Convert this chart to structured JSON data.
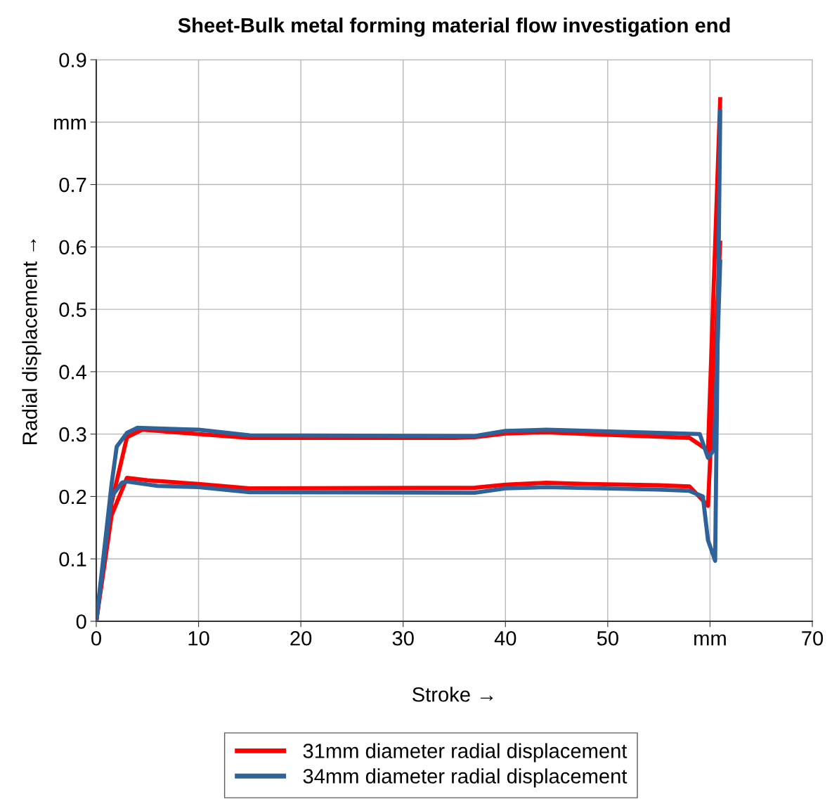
{
  "chart_data": {
    "type": "line",
    "title": "Sheet-Bulk metal forming material flow investigation end",
    "xlabel": "Stroke →",
    "ylabel": "Radial displacement →",
    "xlim": [
      0,
      70
    ],
    "xticks": [
      0,
      10,
      20,
      30,
      40,
      50,
      {
        "value": 60,
        "label": "mm"
      },
      70
    ],
    "ylim": [
      0,
      0.9
    ],
    "yticks": [
      0,
      0.1,
      0.2,
      0.3,
      0.4,
      0.5,
      0.6,
      0.7,
      {
        "value": 0.8,
        "label": "mm"
      },
      0.9
    ],
    "grid": true,
    "legend": "bottom",
    "marker": "none",
    "line_style": "solid",
    "series": [
      {
        "name": "31mm diameter radial displacement",
        "color": "#ff0000",
        "x": [
          0,
          1.5,
          3,
          4.5,
          10,
          15,
          35,
          37,
          40,
          44,
          48,
          55,
          58,
          59.8,
          61
        ],
        "values": [
          0,
          0.19,
          0.295,
          0.307,
          0.3,
          0.294,
          0.294,
          0.295,
          0.301,
          0.303,
          0.3,
          0.296,
          0.294,
          0.274,
          0.84
        ]
      },
      {
        "color": "#ff0000",
        "x": [
          0,
          1.5,
          3,
          5,
          10,
          15,
          37,
          40,
          44,
          48,
          55,
          58,
          59.8,
          61
        ],
        "values": [
          0,
          0.17,
          0.23,
          0.226,
          0.22,
          0.213,
          0.214,
          0.219,
          0.222,
          0.22,
          0.218,
          0.216,
          0.185,
          0.61
        ]
      },
      {
        "name": "34mm diameter radial displacement",
        "color": "#2e6299",
        "x": [
          0,
          1.5,
          2,
          3,
          4,
          6,
          10,
          15,
          37,
          40,
          44,
          55,
          59,
          59.8,
          60.4,
          61
        ],
        "values": [
          0,
          0.22,
          0.28,
          0.302,
          0.31,
          0.309,
          0.307,
          0.298,
          0.297,
          0.305,
          0.307,
          0.302,
          0.3,
          0.262,
          0.275,
          0.58
        ]
      },
      {
        "color": "#2e6299",
        "x": [
          0,
          1.5,
          2.5,
          3,
          6,
          10,
          15,
          37,
          40,
          44,
          55,
          58,
          59.3,
          59.8,
          60.5,
          61
        ],
        "values": [
          0,
          0.2,
          0.222,
          0.224,
          0.217,
          0.215,
          0.207,
          0.206,
          0.213,
          0.215,
          0.211,
          0.209,
          0.2,
          0.13,
          0.097,
          0.82
        ]
      }
    ]
  }
}
